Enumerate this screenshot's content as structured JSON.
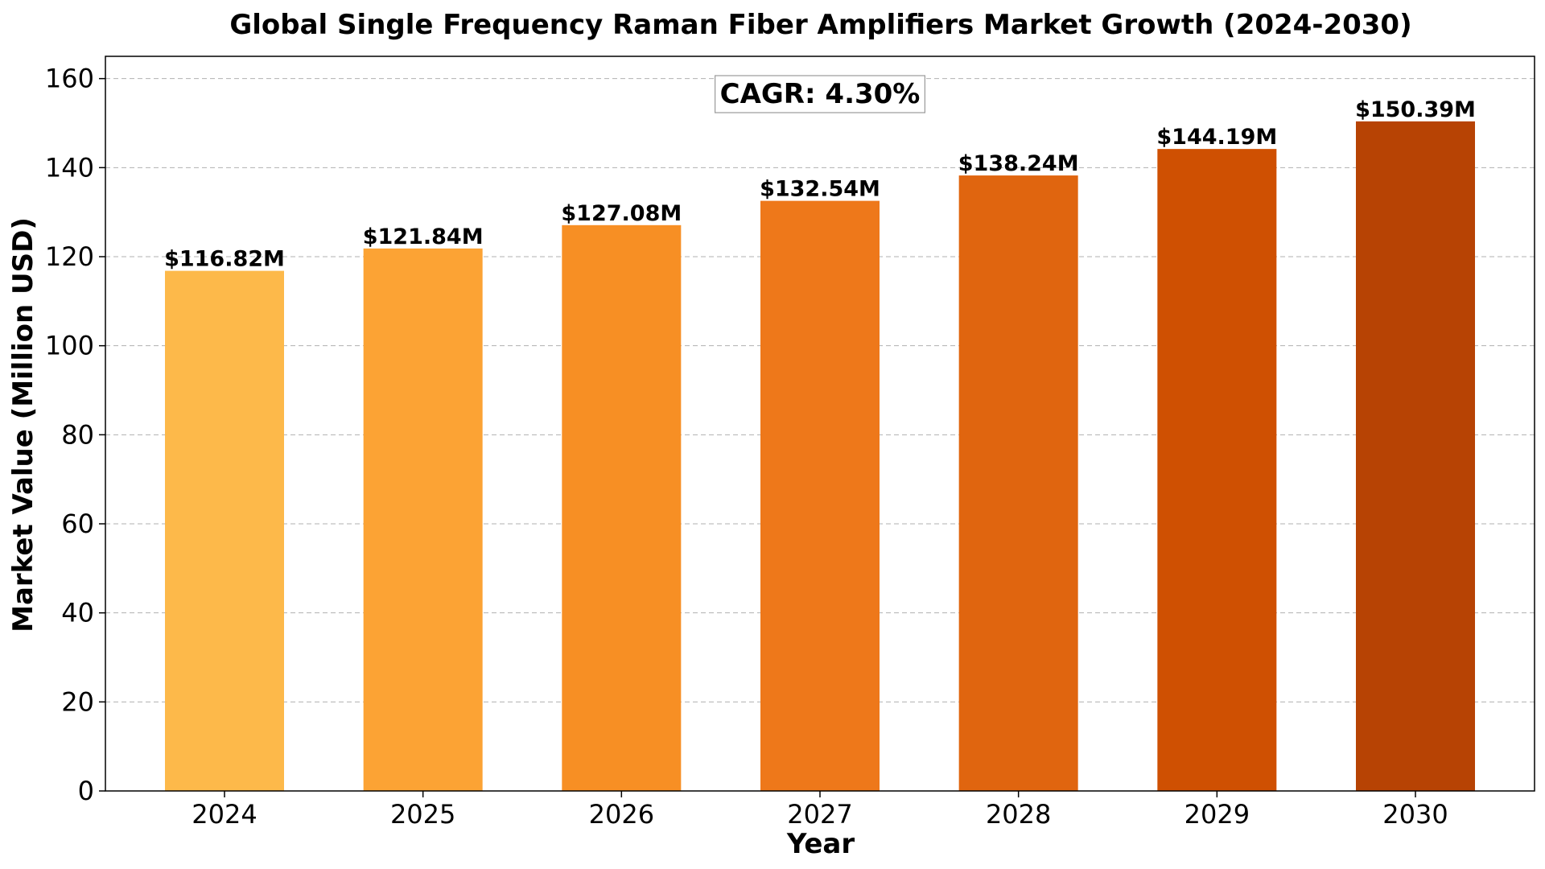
{
  "chart_data": {
    "type": "bar",
    "title": "Global Single Frequency Raman Fiber Amplifiers Market Growth (2024-2030)",
    "xlabel": "Year",
    "ylabel": "Market Value (Million USD)",
    "categories": [
      "2024",
      "2025",
      "2026",
      "2027",
      "2028",
      "2029",
      "2030"
    ],
    "values": [
      116.82,
      121.84,
      127.08,
      132.54,
      138.24,
      144.19,
      150.39
    ],
    "data_labels": [
      "$116.82M",
      "$121.84M",
      "$127.08M",
      "$132.54M",
      "$138.24M",
      "$144.19M",
      "$150.39M"
    ],
    "colors": [
      "#FDB94A",
      "#FCA334",
      "#F78F24",
      "#EE781A",
      "#E0650F",
      "#CF5002",
      "#B74304"
    ],
    "ylim": [
      0,
      165
    ],
    "yticks": [
      0,
      20,
      40,
      60,
      80,
      100,
      120,
      140,
      160
    ],
    "grid": "y-dashed",
    "annotation": "CAGR: 4.30%"
  }
}
